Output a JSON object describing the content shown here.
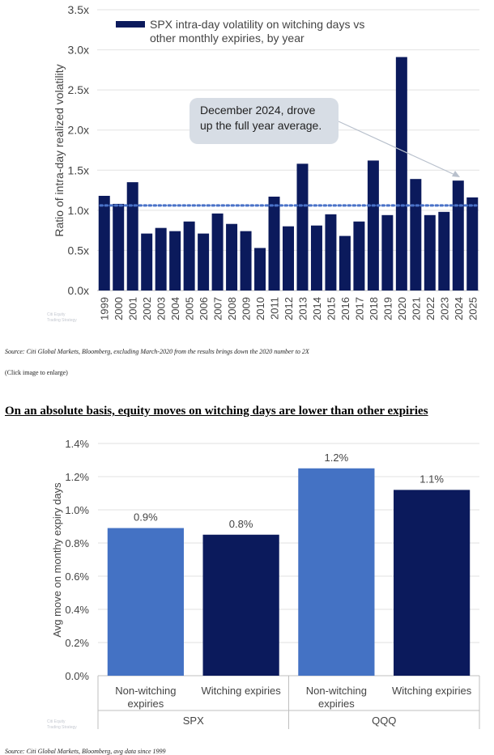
{
  "chart_data": [
    {
      "type": "bar",
      "legend_label_line1": "SPX intra-day volatility on witching days vs",
      "legend_label_line2": "other monthly expiries, by year",
      "ylabel": "Ratio of intra-day realized volatility",
      "ylim": [
        0,
        3.5
      ],
      "yticks": [
        "0.0x",
        "0.5x",
        "1.0x",
        "1.5x",
        "2.0x",
        "2.5x",
        "3.0x",
        "3.5x"
      ],
      "categories": [
        "1999",
        "2000",
        "2001",
        "2002",
        "2003",
        "2004",
        "2005",
        "2006",
        "2007",
        "2008",
        "2009",
        "2010",
        "2011",
        "2012",
        "2013",
        "2014",
        "2015",
        "2016",
        "2017",
        "2018",
        "2019",
        "2020",
        "2021",
        "2022",
        "2023",
        "2024",
        "2025"
      ],
      "values": [
        1.18,
        1.08,
        1.35,
        0.71,
        0.78,
        0.74,
        0.86,
        0.71,
        0.96,
        0.83,
        0.74,
        0.53,
        1.17,
        0.8,
        1.58,
        0.81,
        0.95,
        0.68,
        0.86,
        1.62,
        0.94,
        2.91,
        1.39,
        0.94,
        0.98,
        1.37,
        1.16
      ],
      "average": 1.06,
      "annotation_line1": "December 2024, drove",
      "annotation_line2": "up the full year average.",
      "bar_color": "#0b1a5c",
      "avg_color": "#4a72c8",
      "watermark_line1": "Citi Equity",
      "watermark_line2": "Trading Strategy"
    },
    {
      "type": "bar",
      "ylabel": "Avg move on monthy expiry days",
      "ylim": [
        0,
        1.4
      ],
      "yticks": [
        "0.0%",
        "0.2%",
        "0.4%",
        "0.6%",
        "0.8%",
        "1.0%",
        "1.2%",
        "1.4%"
      ],
      "groups": [
        "SPX",
        "QQQ"
      ],
      "bars": [
        {
          "group": "SPX",
          "label_line1": "Non-witching",
          "label_line2": "expiries",
          "value": 0.89,
          "data_label": "0.9%",
          "color": "#4472c4"
        },
        {
          "group": "SPX",
          "label_line1": "Witching expiries",
          "label_line2": "",
          "value": 0.85,
          "data_label": "0.8%",
          "color": "#0b1a5c"
        },
        {
          "group": "QQQ",
          "label_line1": "Non-witching",
          "label_line2": "expiries",
          "value": 1.25,
          "data_label": "1.2%",
          "color": "#4472c4"
        },
        {
          "group": "QQQ",
          "label_line1": "Witching expiries",
          "label_line2": "",
          "value": 1.12,
          "data_label": "1.1%",
          "color": "#0b1a5c"
        }
      ],
      "watermark_line1": "Citi Equity",
      "watermark_line2": "Trading Strategy"
    }
  ],
  "text": {
    "source1": "Source: Citi Global Markets, Bloomberg, excluding March-2020 from the results brings down the 2020 number to 2X",
    "enlarge": "(Click image to enlarge)",
    "heading": "On an absolute basis, equity moves on witching days are lower than other expiries",
    "source2": "Source: Citi Global Markets, Bloomberg, avg data since 1999"
  }
}
